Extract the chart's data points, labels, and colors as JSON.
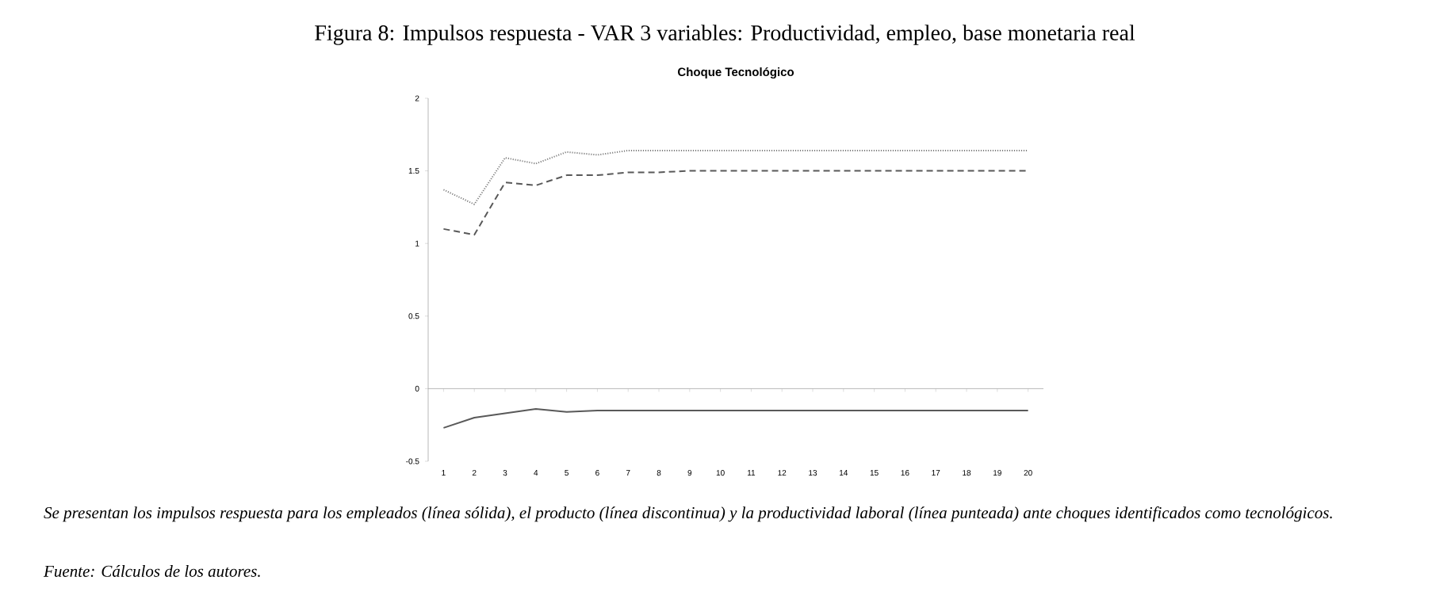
{
  "chart_data": {
    "type": "line",
    "title": "Figura 8: Impulsos respuesta - VAR 3 variables: Productividad, empleo, base monetaria real",
    "subtitle": "Choque Tecnológico",
    "categories": [
      "1",
      "2",
      "3",
      "4",
      "5",
      "6",
      "7",
      "8",
      "9",
      "10",
      "11",
      "12",
      "13",
      "14",
      "15",
      "16",
      "17",
      "18",
      "19",
      "20"
    ],
    "series": [
      {
        "color": "#7f7f7f",
        "line_style": "dotted",
        "values": [
          1.37,
          1.27,
          1.59,
          1.55,
          1.63,
          1.61,
          1.64,
          1.64,
          1.64,
          1.64,
          1.64,
          1.64,
          1.64,
          1.64,
          1.64,
          1.64,
          1.64,
          1.64,
          1.64,
          1.64
        ]
      },
      {
        "color": "#595959",
        "line_style": "dashed",
        "values": [
          1.1,
          1.06,
          1.42,
          1.4,
          1.47,
          1.47,
          1.49,
          1.49,
          1.5,
          1.5,
          1.5,
          1.5,
          1.5,
          1.5,
          1.5,
          1.5,
          1.5,
          1.5,
          1.5,
          1.5
        ]
      },
      {
        "color": "#595959",
        "line_style": "solid",
        "values": [
          -0.27,
          -0.2,
          -0.17,
          -0.14,
          -0.16,
          -0.15,
          -0.15,
          -0.15,
          -0.15,
          -0.15,
          -0.15,
          -0.15,
          -0.15,
          -0.15,
          -0.15,
          -0.15,
          -0.15,
          -0.15,
          -0.15,
          -0.15
        ]
      }
    ],
    "ylim": [
      -0.5,
      2
    ],
    "yticks": [
      -0.5,
      0,
      0.5,
      1,
      1.5,
      2
    ],
    "marker": "none",
    "annotations": [
      "Se presentan los impulsos respuesta para los empleados (línea sólida), el producto (línea discontinua) y la productividad laboral (línea punteada) ante choques identificados como tecnológicos.",
      "Fuente: Cálculos de los autores."
    ]
  }
}
